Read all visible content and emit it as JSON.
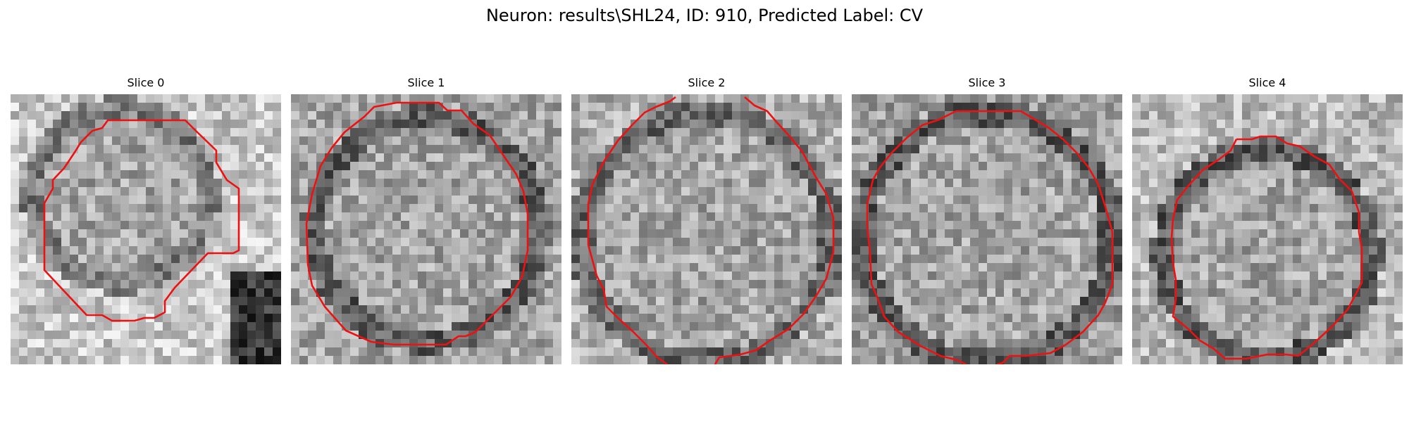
{
  "figure": {
    "title": "Neuron: results\\SHL24, ID: 910, Predicted Label: CV",
    "outline_color": "#ee1111"
  },
  "slices": [
    {
      "title": "Slice 0"
    },
    {
      "title": "Slice 1"
    },
    {
      "title": "Slice 2"
    },
    {
      "title": "Slice 3"
    },
    {
      "title": "Slice 4"
    }
  ]
}
